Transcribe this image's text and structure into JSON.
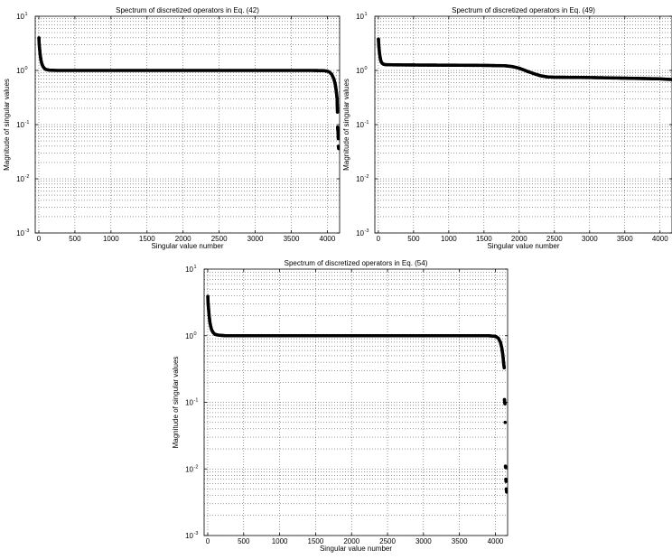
{
  "chart_data": [
    {
      "type": "scatter",
      "title": "Spectrum of discretized operators in Eq. (42)",
      "xlabel": "Singular value number",
      "ylabel": "Magnitude of singular values",
      "xlim": [
        -50,
        4170
      ],
      "ylim": [
        0.001,
        10
      ],
      "yscale": "log",
      "grid": true,
      "x_ticks": [
        0,
        500,
        1000,
        1500,
        2000,
        2500,
        3000,
        3500,
        4000
      ],
      "y_ticks": [
        {
          "value": 0.001,
          "base": "10",
          "exp": "-3"
        },
        {
          "value": 0.01,
          "base": "10",
          "exp": "-2"
        },
        {
          "value": 0.1,
          "base": "10",
          "exp": "-1"
        },
        {
          "value": 1,
          "base": "10",
          "exp": "0"
        },
        {
          "value": 10,
          "base": "10",
          "exp": "1"
        }
      ],
      "points": [
        [
          1,
          4.0
        ],
        [
          3,
          3.5
        ],
        [
          5,
          3.1
        ],
        [
          8,
          2.7
        ],
        [
          12,
          2.4
        ],
        [
          16,
          2.1
        ],
        [
          22,
          1.8
        ],
        [
          30,
          1.55
        ],
        [
          40,
          1.35
        ],
        [
          55,
          1.2
        ],
        [
          75,
          1.1
        ],
        [
          100,
          1.04
        ],
        [
          150,
          1.01
        ],
        [
          250,
          1.0
        ],
        [
          500,
          1.0
        ],
        [
          1000,
          1.0
        ],
        [
          1500,
          1.0
        ],
        [
          2000,
          1.0
        ],
        [
          2500,
          1.0
        ],
        [
          3000,
          1.0
        ],
        [
          3500,
          1.0
        ],
        [
          3800,
          1.0
        ],
        [
          3950,
          0.99
        ],
        [
          4000,
          0.97
        ],
        [
          4030,
          0.93
        ],
        [
          4060,
          0.85
        ],
        [
          4090,
          0.7
        ],
        [
          4110,
          0.55
        ],
        [
          4120,
          0.45
        ],
        [
          4130,
          0.35
        ],
        [
          4135,
          0.3
        ],
        [
          4140,
          0.17
        ],
        [
          4142,
          0.09
        ],
        [
          4144,
          0.085
        ],
        [
          4146,
          0.08
        ],
        [
          4148,
          0.075
        ],
        [
          4150,
          0.07
        ],
        [
          4152,
          0.055
        ],
        [
          4154,
          0.04
        ],
        [
          4156,
          0.038
        ],
        [
          4158,
          0.036
        ]
      ]
    },
    {
      "type": "scatter",
      "title": "Spectrum of discretized operators in Eq. (49)",
      "xlabel": "Singular value number",
      "ylabel": "Magnitude of singular values",
      "xlim": [
        -50,
        4170
      ],
      "ylim": [
        0.001,
        10
      ],
      "yscale": "log",
      "grid": true,
      "x_ticks": [
        0,
        500,
        1000,
        1500,
        2000,
        2500,
        3000,
        3500,
        4000
      ],
      "y_ticks": [
        {
          "value": 0.001,
          "base": "10",
          "exp": "-3"
        },
        {
          "value": 0.01,
          "base": "10",
          "exp": "-2"
        },
        {
          "value": 0.1,
          "base": "10",
          "exp": "-1"
        },
        {
          "value": 1,
          "base": "10",
          "exp": "0"
        },
        {
          "value": 10,
          "base": "10",
          "exp": "1"
        }
      ],
      "points": [
        [
          1,
          3.8
        ],
        [
          3,
          3.4
        ],
        [
          5,
          3.0
        ],
        [
          8,
          2.7
        ],
        [
          12,
          2.4
        ],
        [
          16,
          2.1
        ],
        [
          22,
          1.85
        ],
        [
          30,
          1.6
        ],
        [
          40,
          1.45
        ],
        [
          55,
          1.35
        ],
        [
          75,
          1.3
        ],
        [
          100,
          1.28
        ],
        [
          200,
          1.27
        ],
        [
          500,
          1.26
        ],
        [
          1000,
          1.25
        ],
        [
          1500,
          1.24
        ],
        [
          1800,
          1.22
        ],
        [
          1900,
          1.18
        ],
        [
          2000,
          1.1
        ],
        [
          2100,
          0.98
        ],
        [
          2200,
          0.88
        ],
        [
          2300,
          0.8
        ],
        [
          2400,
          0.76
        ],
        [
          2500,
          0.75
        ],
        [
          3000,
          0.74
        ],
        [
          3500,
          0.72
        ],
        [
          4000,
          0.7
        ],
        [
          4160,
          0.68
        ]
      ]
    },
    {
      "type": "scatter",
      "title": "Spectrum of discretized operators in Eq. (54)",
      "xlabel": "Singular value number",
      "ylabel": "Magnitude of singular values",
      "xlim": [
        -50,
        4170
      ],
      "ylim": [
        0.001,
        10
      ],
      "yscale": "log",
      "grid": true,
      "x_ticks": [
        0,
        500,
        1000,
        1500,
        2000,
        2500,
        3000,
        3500,
        4000
      ],
      "y_ticks": [
        {
          "value": 0.001,
          "base": "10",
          "exp": "-3"
        },
        {
          "value": 0.01,
          "base": "10",
          "exp": "-2"
        },
        {
          "value": 0.1,
          "base": "10",
          "exp": "-1"
        },
        {
          "value": 1,
          "base": "10",
          "exp": "0"
        },
        {
          "value": 10,
          "base": "10",
          "exp": "1"
        }
      ],
      "points": [
        [
          1,
          3.9
        ],
        [
          3,
          3.5
        ],
        [
          5,
          3.1
        ],
        [
          8,
          2.8
        ],
        [
          12,
          2.5
        ],
        [
          16,
          2.2
        ],
        [
          22,
          1.9
        ],
        [
          30,
          1.6
        ],
        [
          40,
          1.4
        ],
        [
          55,
          1.22
        ],
        [
          75,
          1.12
        ],
        [
          100,
          1.05
        ],
        [
          150,
          1.02
        ],
        [
          250,
          1.0
        ],
        [
          500,
          1.0
        ],
        [
          1000,
          1.0
        ],
        [
          1500,
          1.0
        ],
        [
          2000,
          1.0
        ],
        [
          2500,
          1.0
        ],
        [
          3000,
          1.0
        ],
        [
          3500,
          1.0
        ],
        [
          3900,
          1.0
        ],
        [
          4000,
          0.98
        ],
        [
          4040,
          0.92
        ],
        [
          4070,
          0.8
        ],
        [
          4090,
          0.65
        ],
        [
          4105,
          0.5
        ],
        [
          4115,
          0.38
        ],
        [
          4120,
          0.35
        ],
        [
          4123,
          0.33
        ],
        [
          4126,
          0.11
        ],
        [
          4128,
          0.105
        ],
        [
          4130,
          0.1
        ],
        [
          4133,
          0.095
        ],
        [
          4136,
          0.05
        ],
        [
          4140,
          0.011
        ],
        [
          4142,
          0.0105
        ],
        [
          4145,
          0.007
        ],
        [
          4148,
          0.0065
        ],
        [
          4151,
          0.005
        ],
        [
          4154,
          0.0048
        ],
        [
          4157,
          0.0045
        ]
      ]
    }
  ]
}
